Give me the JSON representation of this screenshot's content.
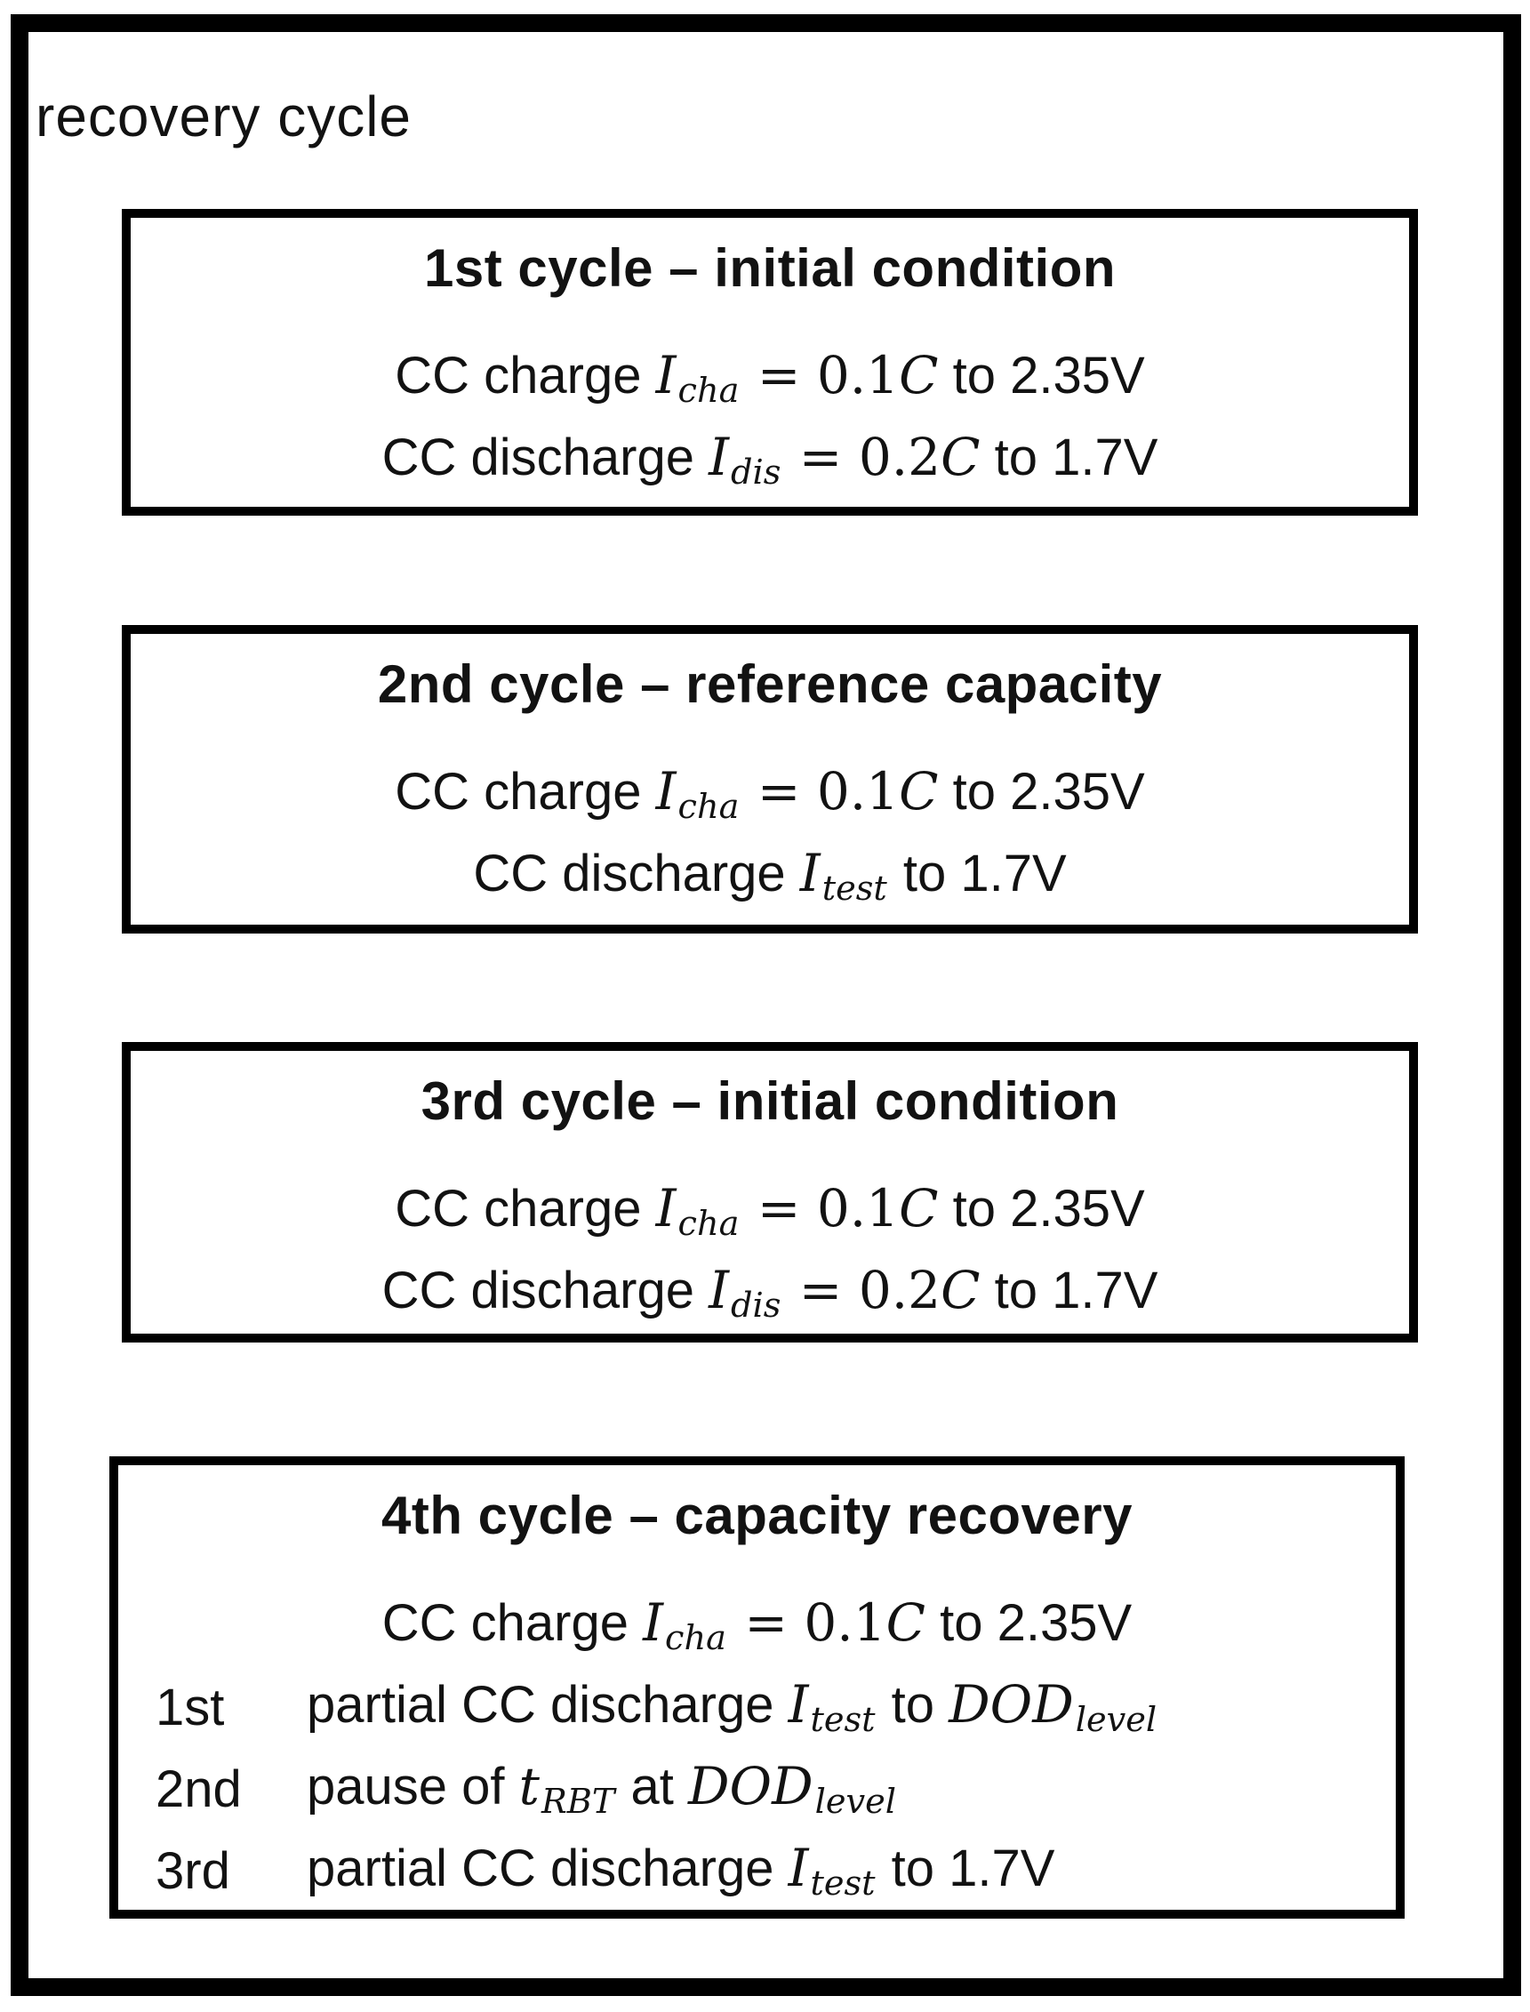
{
  "figure": {
    "label": "recovery cycle"
  },
  "boxes": [
    {
      "title": "1st cycle – initial condition",
      "lines": [
        {
          "segments": [
            {
              "t": "CC charge ",
              "k": "tx"
            },
            {
              "t": "I",
              "k": "it"
            },
            {
              "t": "cha",
              "k": "sb"
            },
            {
              "t": " = 0.1",
              "k": "mn"
            },
            {
              "t": "C",
              "k": "it"
            },
            {
              "t": " to 2.35V",
              "k": "tx"
            }
          ]
        },
        {
          "segments": [
            {
              "t": "CC discharge ",
              "k": "tx"
            },
            {
              "t": "I",
              "k": "it"
            },
            {
              "t": "dis",
              "k": "sb"
            },
            {
              "t": " = 0.2",
              "k": "mn"
            },
            {
              "t": "C",
              "k": "it"
            },
            {
              "t": " to 1.7V",
              "k": "tx"
            }
          ]
        }
      ]
    },
    {
      "title": "2nd cycle – reference capacity",
      "lines": [
        {
          "segments": [
            {
              "t": "CC charge ",
              "k": "tx"
            },
            {
              "t": "I",
              "k": "it"
            },
            {
              "t": "cha",
              "k": "sb"
            },
            {
              "t": " = 0.1",
              "k": "mn"
            },
            {
              "t": "C",
              "k": "it"
            },
            {
              "t": " to 2.35V",
              "k": "tx"
            }
          ]
        },
        {
          "segments": [
            {
              "t": "CC discharge ",
              "k": "tx"
            },
            {
              "t": "I",
              "k": "it"
            },
            {
              "t": "test",
              "k": "sb"
            },
            {
              "t": " to 1.7V",
              "k": "tx"
            }
          ]
        }
      ]
    },
    {
      "title": "3rd cycle – initial condition",
      "lines": [
        {
          "segments": [
            {
              "t": "CC charge ",
              "k": "tx"
            },
            {
              "t": "I",
              "k": "it"
            },
            {
              "t": "cha",
              "k": "sb"
            },
            {
              "t": " = 0.1",
              "k": "mn"
            },
            {
              "t": "C",
              "k": "it"
            },
            {
              "t": " to 2.35V",
              "k": "tx"
            }
          ]
        },
        {
          "segments": [
            {
              "t": "CC discharge ",
              "k": "tx"
            },
            {
              "t": "I",
              "k": "it"
            },
            {
              "t": "dis",
              "k": "sb"
            },
            {
              "t": " = 0.2",
              "k": "mn"
            },
            {
              "t": "C",
              "k": "it"
            },
            {
              "t": " to 1.7V",
              "k": "tx"
            }
          ]
        }
      ]
    },
    {
      "title": "4th cycle – capacity recovery",
      "lines": [
        {
          "segments": [
            {
              "t": "CC charge ",
              "k": "tx"
            },
            {
              "t": "I",
              "k": "it"
            },
            {
              "t": "cha",
              "k": "sb"
            },
            {
              "t": " = 0.1",
              "k": "mn"
            },
            {
              "t": "C",
              "k": "it"
            },
            {
              "t": " to 2.35V",
              "k": "tx"
            }
          ]
        },
        {
          "label": "1st",
          "segments": [
            {
              "t": "partial CC discharge ",
              "k": "tx"
            },
            {
              "t": "I",
              "k": "it"
            },
            {
              "t": "test",
              "k": "sb"
            },
            {
              "t": " to ",
              "k": "tx"
            },
            {
              "t": "DOD",
              "k": "it"
            },
            {
              "t": "level",
              "k": "sb"
            }
          ]
        },
        {
          "label": "2nd",
          "segments": [
            {
              "t": "pause of ",
              "k": "tx"
            },
            {
              "t": "t",
              "k": "it"
            },
            {
              "t": "RBT",
              "k": "sb"
            },
            {
              "t": " at ",
              "k": "tx"
            },
            {
              "t": "DOD",
              "k": "it"
            },
            {
              "t": "level",
              "k": "sb"
            }
          ]
        },
        {
          "label": "3rd",
          "segments": [
            {
              "t": "partial CC discharge ",
              "k": "tx"
            },
            {
              "t": "I",
              "k": "it"
            },
            {
              "t": "test",
              "k": "sb"
            },
            {
              "t": " to 1.7V",
              "k": "tx"
            }
          ]
        }
      ]
    }
  ]
}
